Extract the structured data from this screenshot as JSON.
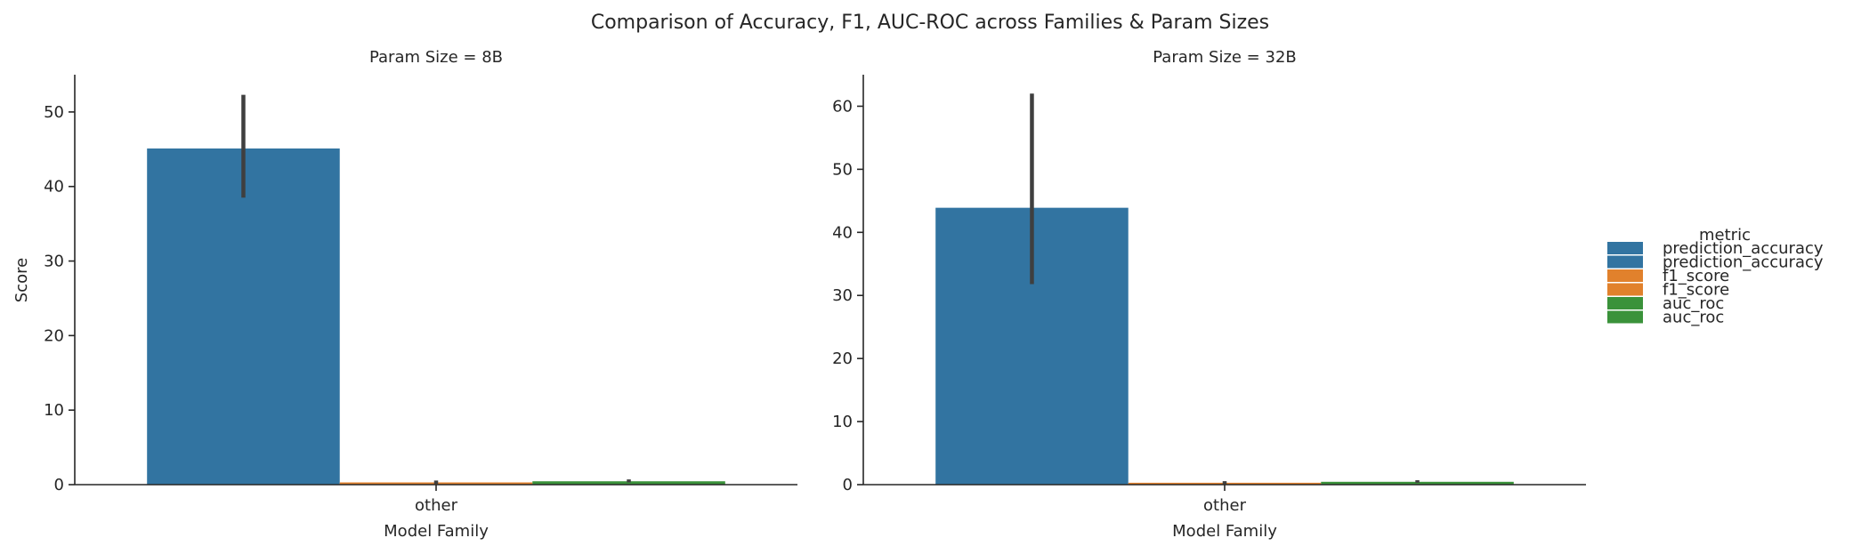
{
  "title": "Comparison of Accuracy, F1, AUC-ROC across Families & Param Sizes",
  "legend": {
    "title": "metric",
    "items": [
      {
        "label": "prediction_accuracy",
        "color": "#3274a1"
      },
      {
        "label": "prediction_accuracy",
        "color": "#3274a1"
      },
      {
        "label": "f1_score",
        "color": "#e1812c"
      },
      {
        "label": "f1_score",
        "color": "#e1812c"
      },
      {
        "label": "auc_roc",
        "color": "#3a923a"
      },
      {
        "label": "auc_roc",
        "color": "#3a923a"
      }
    ]
  },
  "chart_data": [
    {
      "type": "bar",
      "title": "Param Size = 8B",
      "xlabel": "Model Family",
      "ylabel": "Score",
      "categories": [
        "other"
      ],
      "ylim": [
        0,
        55
      ],
      "yticks": [
        0,
        10,
        20,
        30,
        40,
        50
      ],
      "grid": false,
      "series": [
        {
          "name": "prediction_accuracy",
          "color": "#3274a1",
          "values": [
            45.1
          ],
          "err": [
            [
              38.5,
              52.3
            ]
          ]
        },
        {
          "name": "f1_score",
          "color": "#e1812c",
          "values": [
            0.3
          ],
          "err": [
            [
              0.1,
              0.55
            ]
          ]
        },
        {
          "name": "auc_roc",
          "color": "#3a923a",
          "values": [
            0.45
          ],
          "err": [
            [
              0.3,
              0.7
            ]
          ]
        }
      ]
    },
    {
      "type": "bar",
      "title": "Param Size = 32B",
      "xlabel": "Model Family",
      "ylabel": "",
      "categories": [
        "other"
      ],
      "ylim": [
        0,
        65
      ],
      "yticks": [
        0,
        10,
        20,
        30,
        40,
        50,
        60
      ],
      "grid": false,
      "series": [
        {
          "name": "prediction_accuracy",
          "color": "#3274a1",
          "values": [
            43.9
          ],
          "err": [
            [
              31.8,
              62.0
            ]
          ]
        },
        {
          "name": "f1_score",
          "color": "#e1812c",
          "values": [
            0.3
          ],
          "err": [
            [
              0.1,
              0.55
            ]
          ]
        },
        {
          "name": "auc_roc",
          "color": "#3a923a",
          "values": [
            0.45
          ],
          "err": [
            [
              0.3,
              0.7
            ]
          ]
        }
      ]
    }
  ]
}
